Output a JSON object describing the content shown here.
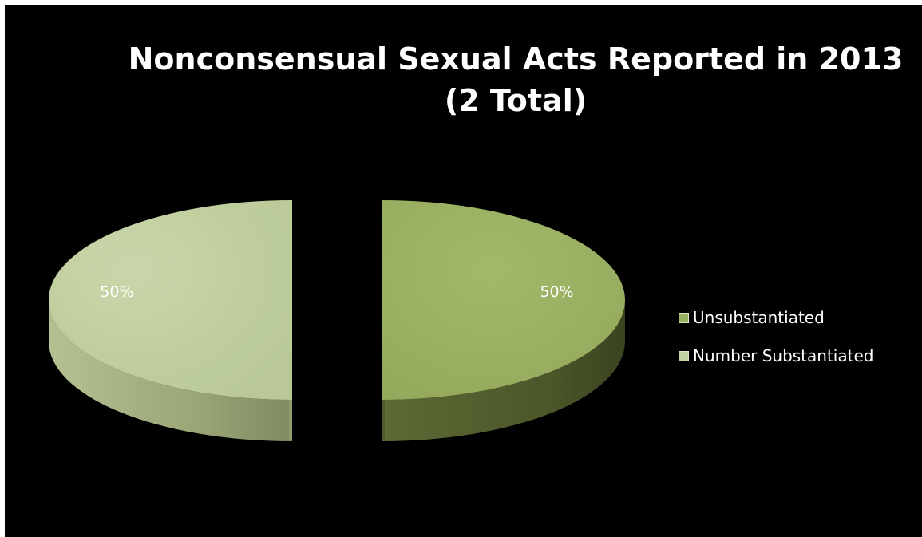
{
  "chart_data": {
    "type": "pie",
    "title_lines": [
      "Nonconsensual Sexual Acts Reported in 2013",
      "(2 Total)"
    ],
    "categories": [
      "Unsubstantiated",
      "Number Substantiated"
    ],
    "values": [
      1,
      1
    ],
    "percent_labels": [
      "50%",
      "50%"
    ],
    "colors": [
      "#9bb162",
      "#c2d1a0"
    ],
    "side_colors": [
      "#4f5a2d",
      "#8f9c6d"
    ],
    "legend": {
      "position": "right",
      "entries": [
        "Unsubstantiated",
        "Number Substantiated"
      ]
    },
    "style": "3d-exploded"
  }
}
